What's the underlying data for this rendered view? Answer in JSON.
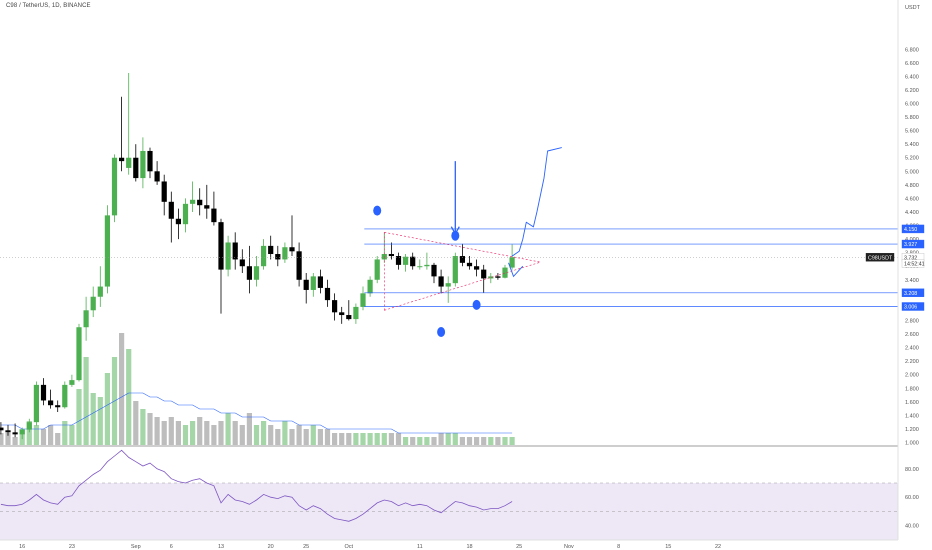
{
  "header": {
    "title": "C98 / TetherUS, 1D, BINANCE"
  },
  "price_axis": {
    "currency": "USDT",
    "ticks": [
      "6.800",
      "6.600",
      "6.400",
      "6.200",
      "6.000",
      "5.800",
      "5.600",
      "5.400",
      "5.200",
      "5.000",
      "4.800",
      "4.600",
      "4.400",
      "4.200",
      "4.000",
      "3.800",
      "3.600",
      "3.400",
      "3.200",
      "3.000",
      "2.800",
      "2.600",
      "2.400",
      "2.200",
      "2.000",
      "1.800",
      "1.600",
      "1.400",
      "1.200",
      "1.000"
    ],
    "tags": [
      {
        "label": "4.150",
        "value": 4.15,
        "style": "blue"
      },
      {
        "label": "3.927",
        "value": 3.927,
        "style": "blue"
      },
      {
        "label": "C98USDT",
        "value": 3.732,
        "style": "dark"
      },
      {
        "label": "3.732",
        "value": 3.732,
        "style": "white"
      },
      {
        "label": "14:52:41",
        "value": 3.64,
        "style": "white"
      },
      {
        "label": "3.208",
        "value": 3.208,
        "style": "blue"
      },
      {
        "label": "3.006",
        "value": 3.006,
        "style": "blue"
      }
    ]
  },
  "rsi_axis": {
    "ticks": [
      "80.00",
      "60.00",
      "40.00"
    ]
  },
  "time_axis": {
    "ticks": [
      {
        "label": "16",
        "day": 2
      },
      {
        "label": "23",
        "day": 9
      },
      {
        "label": "Sep",
        "day": 18
      },
      {
        "label": "6",
        "day": 23
      },
      {
        "label": "13",
        "day": 30
      },
      {
        "label": "20",
        "day": 37
      },
      {
        "label": "25",
        "day": 42
      },
      {
        "label": "Oct",
        "day": 48
      },
      {
        "label": "11",
        "day": 58
      },
      {
        "label": "18",
        "day": 65
      },
      {
        "label": "25",
        "day": 72
      },
      {
        "label": "Nov",
        "day": 79
      },
      {
        "label": "8",
        "day": 86
      },
      {
        "label": "15",
        "day": 93
      },
      {
        "label": "22",
        "day": 100
      }
    ]
  },
  "colors": {
    "up": "#4caf50",
    "down": "#000000",
    "drawing": "#2962ff",
    "triangle": "#e91e63",
    "volume_up": "#a5d6a7",
    "volume_down": "#bdbdbd",
    "volume_ma": "#2962ff",
    "rsi": "#7e57c2",
    "rsi_band": "#ede7f6"
  },
  "chart_data": {
    "type": "candlestick",
    "title": "C98 / TetherUS, 1D, BINANCE",
    "y_unit": "USDT",
    "ylim": [
      0.9,
      6.85
    ],
    "x_axis": "trading days",
    "candles": [
      {
        "d": -1,
        "o": 1.22,
        "h": 1.3,
        "l": 1.12,
        "c": 1.18
      },
      {
        "d": 0,
        "o": 1.18,
        "h": 1.26,
        "l": 1.1,
        "c": 1.15
      },
      {
        "d": 1,
        "o": 1.15,
        "h": 1.28,
        "l": 1.08,
        "c": 1.12
      },
      {
        "d": 2,
        "o": 1.12,
        "h": 1.22,
        "l": 1.05,
        "c": 1.19
      },
      {
        "d": 3,
        "o": 1.19,
        "h": 1.35,
        "l": 1.15,
        "c": 1.3
      },
      {
        "d": 4,
        "o": 1.3,
        "h": 1.9,
        "l": 1.25,
        "c": 1.85
      },
      {
        "d": 5,
        "o": 1.85,
        "h": 1.95,
        "l": 1.55,
        "c": 1.62
      },
      {
        "d": 6,
        "o": 1.62,
        "h": 1.78,
        "l": 1.5,
        "c": 1.55
      },
      {
        "d": 7,
        "o": 1.55,
        "h": 1.62,
        "l": 1.45,
        "c": 1.52
      },
      {
        "d": 8,
        "o": 1.52,
        "h": 1.9,
        "l": 1.5,
        "c": 1.85
      },
      {
        "d": 9,
        "o": 1.85,
        "h": 2.0,
        "l": 1.82,
        "c": 1.92
      },
      {
        "d": 10,
        "o": 1.92,
        "h": 2.75,
        "l": 1.9,
        "c": 2.7
      },
      {
        "d": 11,
        "o": 2.7,
        "h": 3.15,
        "l": 2.5,
        "c": 2.95
      },
      {
        "d": 12,
        "o": 2.95,
        "h": 3.3,
        "l": 2.85,
        "c": 3.15
      },
      {
        "d": 13,
        "o": 3.15,
        "h": 3.6,
        "l": 3.0,
        "c": 3.3
      },
      {
        "d": 14,
        "o": 3.3,
        "h": 4.5,
        "l": 3.2,
        "c": 4.35
      },
      {
        "d": 15,
        "o": 4.35,
        "h": 5.25,
        "l": 4.25,
        "c": 5.2
      },
      {
        "d": 16,
        "o": 5.2,
        "h": 6.1,
        "l": 5.0,
        "c": 5.15
      },
      {
        "d": 17,
        "o": 5.05,
        "h": 6.45,
        "l": 4.95,
        "c": 5.2
      },
      {
        "d": 18,
        "o": 5.2,
        "h": 5.4,
        "l": 4.85,
        "c": 4.9
      },
      {
        "d": 19,
        "o": 4.9,
        "h": 5.5,
        "l": 4.75,
        "c": 5.3
      },
      {
        "d": 20,
        "o": 5.3,
        "h": 5.35,
        "l": 4.9,
        "c": 5.0
      },
      {
        "d": 21,
        "o": 5.0,
        "h": 5.15,
        "l": 4.8,
        "c": 4.85
      },
      {
        "d": 22,
        "o": 4.85,
        "h": 4.95,
        "l": 4.35,
        "c": 4.55
      },
      {
        "d": 23,
        "o": 4.55,
        "h": 4.7,
        "l": 3.95,
        "c": 4.3
      },
      {
        "d": 24,
        "o": 4.3,
        "h": 4.45,
        "l": 4.0,
        "c": 4.22
      },
      {
        "d": 25,
        "o": 4.22,
        "h": 4.6,
        "l": 4.1,
        "c": 4.52
      },
      {
        "d": 26,
        "o": 4.52,
        "h": 4.85,
        "l": 4.4,
        "c": 4.58
      },
      {
        "d": 27,
        "o": 4.58,
        "h": 4.75,
        "l": 4.35,
        "c": 4.5
      },
      {
        "d": 28,
        "o": 4.5,
        "h": 4.8,
        "l": 4.3,
        "c": 4.45
      },
      {
        "d": 29,
        "o": 4.45,
        "h": 4.7,
        "l": 4.2,
        "c": 4.25
      },
      {
        "d": 30,
        "o": 4.25,
        "h": 4.3,
        "l": 2.9,
        "c": 3.55
      },
      {
        "d": 31,
        "o": 3.55,
        "h": 4.05,
        "l": 3.45,
        "c": 3.95
      },
      {
        "d": 32,
        "o": 3.95,
        "h": 4.1,
        "l": 3.55,
        "c": 3.7
      },
      {
        "d": 33,
        "o": 3.7,
        "h": 3.85,
        "l": 3.5,
        "c": 3.6
      },
      {
        "d": 34,
        "o": 3.6,
        "h": 3.9,
        "l": 3.2,
        "c": 3.4
      },
      {
        "d": 35,
        "o": 3.4,
        "h": 3.75,
        "l": 3.3,
        "c": 3.6
      },
      {
        "d": 36,
        "o": 3.6,
        "h": 4.0,
        "l": 3.55,
        "c": 3.9
      },
      {
        "d": 37,
        "o": 3.9,
        "h": 4.05,
        "l": 3.7,
        "c": 3.78
      },
      {
        "d": 38,
        "o": 3.78,
        "h": 3.9,
        "l": 3.6,
        "c": 3.7
      },
      {
        "d": 39,
        "o": 3.7,
        "h": 3.95,
        "l": 3.65,
        "c": 3.88
      },
      {
        "d": 40,
        "o": 3.88,
        "h": 4.35,
        "l": 3.75,
        "c": 3.82
      },
      {
        "d": 41,
        "o": 3.82,
        "h": 3.95,
        "l": 3.3,
        "c": 3.4
      },
      {
        "d": 42,
        "o": 3.4,
        "h": 3.5,
        "l": 3.05,
        "c": 3.25
      },
      {
        "d": 43,
        "o": 3.25,
        "h": 3.5,
        "l": 3.15,
        "c": 3.45
      },
      {
        "d": 44,
        "o": 3.45,
        "h": 3.55,
        "l": 3.2,
        "c": 3.28
      },
      {
        "d": 45,
        "o": 3.28,
        "h": 3.4,
        "l": 3.0,
        "c": 3.1
      },
      {
        "d": 46,
        "o": 3.1,
        "h": 3.2,
        "l": 2.8,
        "c": 2.92
      },
      {
        "d": 47,
        "o": 2.92,
        "h": 3.0,
        "l": 2.75,
        "c": 2.88
      },
      {
        "d": 48,
        "o": 2.88,
        "h": 3.1,
        "l": 2.8,
        "c": 2.82
      },
      {
        "d": 49,
        "o": 2.82,
        "h": 3.05,
        "l": 2.75,
        "c": 3.0
      },
      {
        "d": 50,
        "o": 3.0,
        "h": 3.3,
        "l": 2.95,
        "c": 3.2
      },
      {
        "d": 51,
        "o": 3.2,
        "h": 3.45,
        "l": 3.15,
        "c": 3.4
      },
      {
        "d": 52,
        "o": 3.4,
        "h": 3.75,
        "l": 3.35,
        "c": 3.7
      },
      {
        "d": 53,
        "o": 3.7,
        "h": 4.1,
        "l": 3.65,
        "c": 3.78
      },
      {
        "d": 54,
        "o": 3.78,
        "h": 3.95,
        "l": 3.7,
        "c": 3.75
      },
      {
        "d": 55,
        "o": 3.75,
        "h": 3.8,
        "l": 3.55,
        "c": 3.62
      },
      {
        "d": 56,
        "o": 3.62,
        "h": 3.78,
        "l": 3.52,
        "c": 3.74
      },
      {
        "d": 57,
        "o": 3.74,
        "h": 3.8,
        "l": 3.55,
        "c": 3.6
      },
      {
        "d": 58,
        "o": 3.6,
        "h": 3.7,
        "l": 3.55,
        "c": 3.6
      },
      {
        "d": 59,
        "o": 3.6,
        "h": 3.8,
        "l": 3.55,
        "c": 3.62
      },
      {
        "d": 60,
        "o": 3.62,
        "h": 3.65,
        "l": 3.35,
        "c": 3.45
      },
      {
        "d": 61,
        "o": 3.45,
        "h": 3.55,
        "l": 3.2,
        "c": 3.3
      },
      {
        "d": 62,
        "o": 3.3,
        "h": 3.45,
        "l": 3.06,
        "c": 3.35
      },
      {
        "d": 63,
        "o": 3.35,
        "h": 3.8,
        "l": 3.3,
        "c": 3.75
      },
      {
        "d": 64,
        "o": 3.75,
        "h": 3.93,
        "l": 3.6,
        "c": 3.65
      },
      {
        "d": 65,
        "o": 3.65,
        "h": 3.75,
        "l": 3.55,
        "c": 3.6
      },
      {
        "d": 66,
        "o": 3.6,
        "h": 3.7,
        "l": 3.45,
        "c": 3.55
      },
      {
        "d": 67,
        "o": 3.55,
        "h": 3.62,
        "l": 3.21,
        "c": 3.42
      },
      {
        "d": 68,
        "o": 3.42,
        "h": 3.5,
        "l": 3.35,
        "c": 3.45
      },
      {
        "d": 69,
        "o": 3.45,
        "h": 3.5,
        "l": 3.4,
        "c": 3.43
      },
      {
        "d": 70,
        "o": 3.43,
        "h": 3.62,
        "l": 3.42,
        "c": 3.58
      },
      {
        "d": 71,
        "o": 3.58,
        "h": 3.92,
        "l": 3.55,
        "c": 3.732
      }
    ],
    "volume": [
      3,
      3,
      2,
      4,
      6,
      5,
      4,
      5,
      3,
      6,
      5,
      14,
      22,
      13,
      12,
      18,
      22,
      28,
      24,
      11,
      9,
      8,
      7,
      6,
      7,
      6,
      5,
      6,
      7,
      6,
      5,
      6,
      8,
      6,
      5,
      8,
      5,
      6,
      5,
      4,
      6,
      4,
      5,
      4,
      5,
      4,
      4,
      3,
      3,
      3,
      3,
      3,
      3,
      3,
      3,
      3,
      3,
      2,
      2,
      2,
      2,
      2,
      3,
      3,
      3,
      2,
      2,
      2,
      2,
      2,
      2,
      2,
      2
    ],
    "volume_ma": [
      5,
      5,
      5,
      4,
      4,
      4,
      4,
      5,
      5,
      5,
      5,
      6,
      7,
      8,
      9,
      10,
      11,
      12,
      13,
      13,
      13,
      12,
      12,
      11,
      11,
      10,
      10,
      10,
      9,
      9,
      9,
      8,
      8,
      8,
      7,
      7,
      7,
      7,
      6,
      6,
      6,
      6,
      5,
      5,
      5,
      5,
      4,
      4,
      4,
      4,
      4,
      4,
      4,
      4,
      4,
      4,
      3,
      3,
      3,
      3,
      3,
      3,
      3,
      3,
      3,
      3,
      3,
      3,
      3,
      3,
      3,
      3,
      3
    ],
    "rsi": {
      "ylim": [
        30,
        100
      ],
      "bands": [
        70,
        50,
        30
      ],
      "values": [
        55,
        54,
        54,
        55,
        58,
        62,
        58,
        56,
        55,
        60,
        61,
        68,
        72,
        76,
        79,
        85,
        89,
        93,
        88,
        85,
        82,
        84,
        80,
        78,
        73,
        71,
        70,
        72,
        73,
        70,
        68,
        56,
        62,
        58,
        57,
        55,
        58,
        62,
        60,
        59,
        61,
        60,
        54,
        51,
        54,
        52,
        48,
        45,
        44,
        43,
        45,
        48,
        52,
        56,
        58,
        57,
        54,
        56,
        54,
        55,
        54,
        51,
        49,
        53,
        57,
        56,
        54,
        53,
        51,
        52,
        52,
        54,
        57
      ]
    },
    "annotations": {
      "horizontal_levels": [
        4.15,
        3.927,
        3.208,
        3.006
      ],
      "triangle": {
        "start_day": 53,
        "start_high": 4.1,
        "start_low": 2.95,
        "apex_day": 75,
        "apex_price": 3.66
      },
      "blue_dots": [
        [
          52,
          4.42
        ],
        [
          63,
          4.05
        ],
        [
          61,
          2.63
        ],
        [
          66,
          3.03
        ]
      ],
      "down_arrow": {
        "day": 63,
        "from": 5.15,
        "to": 4.08
      },
      "projection_path": [
        [
          71,
          3.75
        ],
        [
          72,
          3.82
        ],
        [
          72.5,
          4.0
        ],
        [
          73,
          4.25
        ],
        [
          74,
          4.18
        ],
        [
          74.5,
          4.4
        ],
        [
          75.5,
          4.9
        ],
        [
          76,
          5.3
        ],
        [
          78,
          5.35
        ]
      ],
      "small_check": [
        [
          70.5,
          3.65
        ],
        [
          71.2,
          3.45
        ],
        [
          72.5,
          3.6
        ]
      ]
    }
  }
}
